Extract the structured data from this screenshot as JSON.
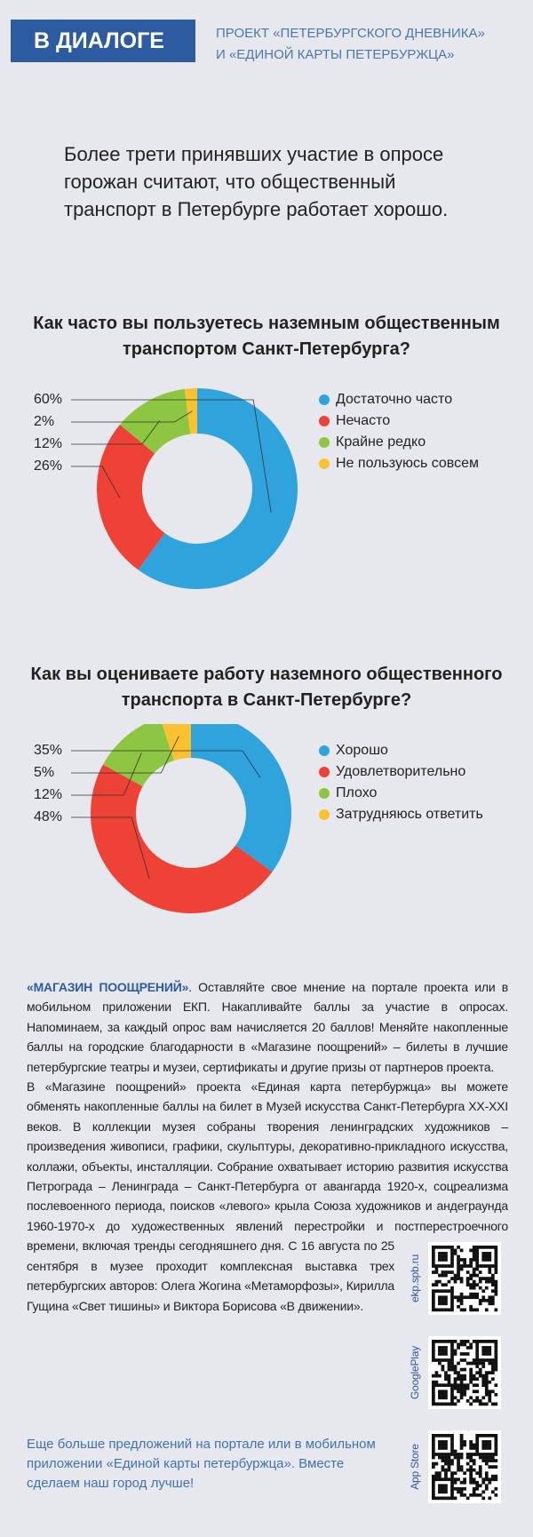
{
  "header": {
    "badge": "В ДИАЛОГЕ",
    "subtitle_lines": [
      "ПРОЕКТ «ПЕТЕРБУРГСКОГО ДНЕВНИКА»",
      "И «ЕДИНОЙ КАРТЫ ПЕТЕРБУРЖЦА»"
    ]
  },
  "lead": "Более трети принявших участие в опросе горожан считают, что общественный транспорт в Петербурге работает хорошо.",
  "chart_data": [
    {
      "type": "pie",
      "title": "Как часто вы пользуетесь наземным общественным транспортом Санкт-Петербурга?",
      "categories": [
        "Достаточно часто",
        "Нечасто",
        "Крайне редко",
        "Не пользуюсь совсем"
      ],
      "values": [
        60,
        26,
        12,
        2
      ],
      "value_labels": [
        "60%",
        "26%",
        "12%",
        "2%"
      ],
      "colors": [
        "#2fa3dc",
        "#ef4237",
        "#8dc641",
        "#fbc12e"
      ]
    },
    {
      "type": "pie",
      "title": "Как вы оцениваете работу наземного общественного транспорта в Санкт-Петербурге?",
      "categories": [
        "Хорошо",
        "Удовлетворительно",
        "Плохо",
        "Затрудняюсь ответить"
      ],
      "values": [
        35,
        48,
        12,
        5
      ],
      "value_labels": [
        "35%",
        "48%",
        "12%",
        "5%"
      ],
      "colors": [
        "#2fa3dc",
        "#ef4237",
        "#8dc641",
        "#fbc12e"
      ]
    }
  ],
  "article": {
    "highlight": "«МАГАЗИН ПООЩРЕНИЙ»",
    "paragraphs": [
      ". Оставляйте свое мнение на портале проекта или в мобильном приложении ЕКП. Накапливайте баллы за участие в опросах. Напоминаем, за каждый опрос вам начисляется 20 баллов! Меняйте накопленные баллы на городские благодарности в «Магазине поощрений» – билеты в лучшие петербургские театры и музеи, сертификаты и другие призы от партнеров проекта.",
      "В «Магазине поощрений» проекта «Единая карта петербуржца» вы можете обменять накопленные баллы на билет в Музей искусства Санкт-Петербурга XX-XXI веков. В коллекции музея собраны творения ленинградских художников – произведения живописи, графики, скульптуры, декоративно-прикладного искусства, коллажи, объекты, инсталляции. Собрание охватывает историю развития искусства Петрограда – Ленинграда – Санкт-Петербурга от авангарда 1920-х, соцреализма послевоенного периода, поисков «левого» крыла Союза художников и андеграунда 1960-1970-х до художественных явлений перестройки и постперестроечного времени, включая тренды сегодняшнего дня. С 16 августа по 25 сентября в музее проходит комплексная выставка трех петербургских авторов: Олега Жогина «Метаморфозы», Кирилла Гущина «Свет тишины» и Виктора Борисова «В движении»."
    ]
  },
  "qr_labels": [
    "ekp.spb.ru",
    "GooglePlay",
    "App Store"
  ],
  "footer": "Еще больше предложений на портале или в мобильном приложении «Единой карты петербуржца». Вместе сделаем наш город лучше!"
}
